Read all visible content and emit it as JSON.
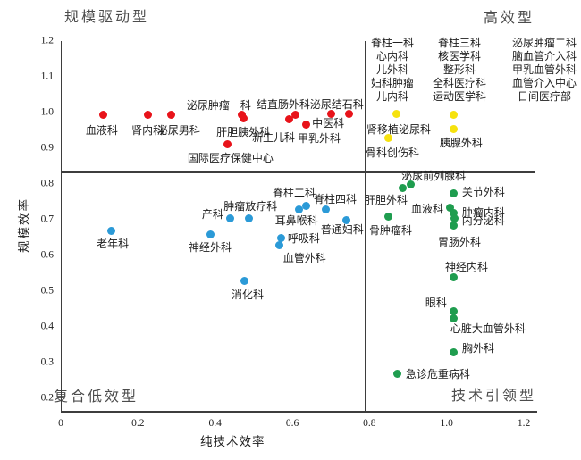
{
  "chart_data": {
    "type": "scatter",
    "xlabel": "纯技术效率",
    "ylabel": "规模效率",
    "xlim": [
      0,
      1.2
    ],
    "ylim": [
      0.2,
      1.2
    ],
    "grid": false,
    "dividers": {
      "x": 0.79,
      "y": 0.832
    },
    "quadrant_labels": {
      "top_left": "规模驱动型",
      "top_right": "高效型",
      "bottom_left": "复合低效型",
      "bottom_right": "技术引领型"
    },
    "x_axis": {
      "ticks": [
        {
          "value": 0,
          "label": "0"
        },
        {
          "value": 0.2,
          "label": "0.2"
        },
        {
          "value": 0.4,
          "label": "0.4"
        },
        {
          "value": 0.6,
          "label": "0.6"
        },
        {
          "value": 0.8,
          "label": "0.8"
        },
        {
          "value": 1.0,
          "label": "1.0"
        },
        {
          "value": 1.2,
          "label": "1.2"
        }
      ]
    },
    "y_axis": {
      "ticks": [
        {
          "value": 0.2,
          "label": "0.2"
        },
        {
          "value": 0.3,
          "label": "0.3"
        },
        {
          "value": 0.4,
          "label": "0.4"
        },
        {
          "value": 0.5,
          "label": "0.5"
        },
        {
          "value": 0.6,
          "label": "0.6"
        },
        {
          "value": 0.7,
          "label": "0.7"
        },
        {
          "value": 0.8,
          "label": "0.8"
        },
        {
          "value": 0.9,
          "label": "0.9"
        },
        {
          "value": 1.0,
          "label": "1.0"
        },
        {
          "value": 1.1,
          "label": "1.1"
        },
        {
          "value": 1.2,
          "label": "1.2"
        }
      ]
    },
    "series": [
      {
        "name": "规模驱动型",
        "color": "#e8131a",
        "points": [
          {
            "label": "血液科",
            "x": 0.111,
            "y": 0.993,
            "dx": -2,
            "dy": 17,
            "anchor": "m"
          },
          {
            "label": "肾内科",
            "x": 0.225,
            "y": 0.993,
            "dx": 0,
            "dy": 17,
            "anchor": "m"
          },
          {
            "label": "泌尿男科",
            "x": 0.287,
            "y": 0.993,
            "dx": 8,
            "dy": 17,
            "anchor": "m"
          },
          {
            "label": "泌尿肿瘤一科",
            "x": 0.47,
            "y": 0.993,
            "dx": -26,
            "dy": -11,
            "anchor": "m"
          },
          {
            "label": "肝胆胰外科",
            "x": 0.473,
            "y": 0.985,
            "dx": 0,
            "dy": 16,
            "anchor": "m"
          },
          {
            "label": "国际医疗保健中心",
            "x": 0.433,
            "y": 0.912,
            "dx": 3,
            "dy": 16,
            "anchor": "m"
          },
          {
            "label": "新生儿科",
            "x": 0.593,
            "y": 0.982,
            "dx": -18,
            "dy": 21,
            "anchor": "m"
          },
          {
            "label": "结直肠外科",
            "x": 0.607,
            "y": 0.995,
            "dx": -13,
            "dy": -11,
            "anchor": "m"
          },
          {
            "label": "甲乳外科",
            "x": 0.637,
            "y": 0.967,
            "dx": 14,
            "dy": 16,
            "anchor": "m"
          },
          {
            "label": "中医科",
            "x": 0.7,
            "y": 0.997,
            "dx": -3,
            "dy": 11,
            "anchor": "m"
          },
          {
            "label": "泌尿结石科",
            "x": 0.748,
            "y": 0.997,
            "dx": -14,
            "dy": -10,
            "anchor": "m"
          }
        ]
      },
      {
        "name": "高效型",
        "color": "#f6e20e",
        "group_labels": [
          [
            "脊柱一科",
            "脊柱三科",
            "泌尿肿瘤二科"
          ],
          [
            "心内科",
            "核医学科",
            "脑血管介入科"
          ],
          [
            "儿外科",
            "整形科",
            "甲乳血管外科"
          ],
          [
            "妇科肿瘤",
            "全科医疗科",
            "血管介入中心"
          ],
          [
            "儿内科",
            "运动医学科",
            "日间医疗部"
          ]
        ],
        "points": [
          {
            "label": "",
            "x": 1.019,
            "y": 0.995,
            "dx": 0,
            "dy": 0,
            "anchor": "m"
          },
          {
            "label": "肾移植泌尿科",
            "x": 0.871,
            "y": 0.996,
            "dx": 2,
            "dy": 17,
            "anchor": "m"
          },
          {
            "label": "骨科创伤科",
            "x": 0.848,
            "y": 0.93,
            "dx": 5,
            "dy": 17,
            "anchor": "m"
          },
          {
            "label": "胰腺外科",
            "x": 1.019,
            "y": 0.955,
            "dx": 8,
            "dy": 16,
            "anchor": "m"
          }
        ]
      },
      {
        "name": "复合低效型",
        "color": "#2b9ad7",
        "points": [
          {
            "label": "老年科",
            "x": 0.13,
            "y": 0.67,
            "dx": 2,
            "dy": 15,
            "anchor": "m"
          },
          {
            "label": "神经外科",
            "x": 0.387,
            "y": 0.658,
            "dx": 0,
            "dy": 14,
            "anchor": "m"
          },
          {
            "label": "产科",
            "x": 0.44,
            "y": 0.703,
            "dx": -8,
            "dy": -5,
            "anchor": "e"
          },
          {
            "label": "肿瘤放疗科",
            "x": 0.487,
            "y": 0.703,
            "dx": 2,
            "dy": -14,
            "anchor": "m"
          },
          {
            "label": "脊柱二科",
            "x": 0.637,
            "y": 0.74,
            "dx": -14,
            "dy": -14,
            "anchor": "m"
          },
          {
            "label": "耳鼻喉科",
            "x": 0.618,
            "y": 0.728,
            "dx": -3,
            "dy": 12,
            "anchor": "m"
          },
          {
            "label": "脊柱四科",
            "x": 0.688,
            "y": 0.728,
            "dx": 10,
            "dy": -12,
            "anchor": "m"
          },
          {
            "label": "普通妇科",
            "x": 0.741,
            "y": 0.7,
            "dx": -5,
            "dy": 11,
            "anchor": "m"
          },
          {
            "label": "呼吸科",
            "x": 0.572,
            "y": 0.65,
            "dx": 7,
            "dy": 1,
            "anchor": "s"
          },
          {
            "label": "血管外科",
            "x": 0.567,
            "y": 0.628,
            "dx": 28,
            "dy": 14,
            "anchor": "m"
          },
          {
            "label": "消化科",
            "x": 0.475,
            "y": 0.53,
            "dx": 4,
            "dy": 16,
            "anchor": "m"
          }
        ]
      },
      {
        "name": "技术引领型",
        "color": "#1f9d4f",
        "points": [
          {
            "label": "泌尿前列腺科",
            "x": 0.906,
            "y": 0.8,
            "dx": 26,
            "dy": -9,
            "anchor": "m"
          },
          {
            "label": "肝胆外科",
            "x": 0.885,
            "y": 0.788,
            "dx": -18,
            "dy": 13,
            "anchor": "m"
          },
          {
            "label": "关节外科",
            "x": 1.019,
            "y": 0.773,
            "dx": 9,
            "dy": -2,
            "anchor": "s"
          },
          {
            "label": "血液科",
            "x": 1.01,
            "y": 0.733,
            "dx": -8,
            "dy": 1,
            "anchor": "e"
          },
          {
            "label": "肿瘤内科",
            "x": 1.019,
            "y": 0.72,
            "dx": 9,
            "dy": 0,
            "anchor": "s"
          },
          {
            "label": "内分泌科",
            "x": 1.021,
            "y": 0.703,
            "dx": 8,
            "dy": 2,
            "anchor": "s"
          },
          {
            "label": "胃肠外科",
            "x": 1.017,
            "y": 0.683,
            "dx": 7,
            "dy": 18,
            "anchor": "m"
          },
          {
            "label": "骨肿瘤科",
            "x": 0.848,
            "y": 0.71,
            "dx": 3,
            "dy": 16,
            "anchor": "m"
          },
          {
            "label": "神经内科",
            "x": 1.017,
            "y": 0.54,
            "dx": 15,
            "dy": -11,
            "anchor": "m"
          },
          {
            "label": "眼科",
            "x": 1.019,
            "y": 0.445,
            "dx": -20,
            "dy": -9,
            "anchor": "m"
          },
          {
            "label": "心脏大血管外科",
            "x": 1.019,
            "y": 0.425,
            "dx": 38,
            "dy": 12,
            "anchor": "m"
          },
          {
            "label": "胸外科",
            "x": 1.019,
            "y": 0.328,
            "dx": 9,
            "dy": -5,
            "anchor": "s"
          },
          {
            "label": "急诊危重病科",
            "x": 0.873,
            "y": 0.268,
            "dx": 9,
            "dy": 0,
            "anchor": "s"
          }
        ]
      }
    ]
  }
}
